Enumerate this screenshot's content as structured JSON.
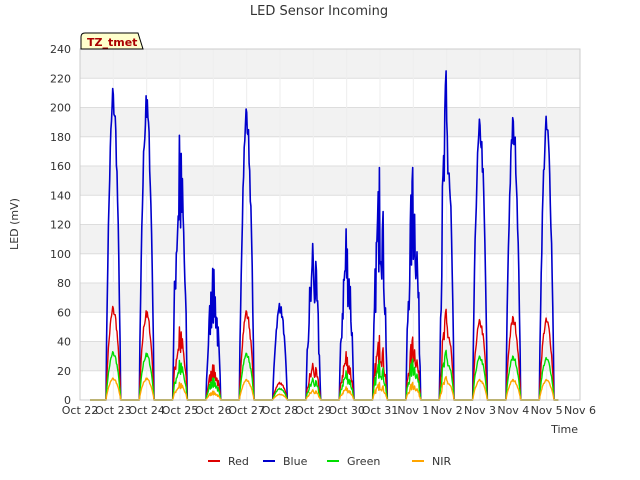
{
  "chart_data": {
    "type": "line",
    "title": "LED Sensor Incoming",
    "xlabel": "Time",
    "ylabel": "LED (mV)",
    "ylim": [
      0,
      240
    ],
    "yticks": [
      0,
      20,
      40,
      60,
      80,
      100,
      120,
      140,
      160,
      180,
      200,
      220,
      240
    ],
    "xlim": [
      0,
      15
    ],
    "xticks": [
      "Oct 22",
      "Oct 23",
      "Oct 24",
      "Oct 25",
      "Oct 26",
      "Oct 27",
      "Oct 28",
      "Oct 29",
      "Oct 30",
      "Oct 31",
      "Nov 1",
      "Nov 2",
      "Nov 3",
      "Nov 4",
      "Nov 5",
      "Nov 6"
    ],
    "badge": "TZ_tmet",
    "grid": true,
    "legend_position": "bottom",
    "daily_peaks": {
      "days": [
        "Oct 23",
        "Oct 24",
        "Oct 25",
        "Oct 26",
        "Oct 27",
        "Oct 28",
        "Oct 29",
        "Oct 30",
        "Oct 31",
        "Nov 1",
        "Nov 2",
        "Nov 3",
        "Nov 4",
        "Nov 5"
      ],
      "day_index": [
        1,
        2,
        3,
        4,
        5,
        6,
        7,
        8,
        9,
        10,
        11,
        12,
        13,
        14
      ],
      "series": [
        {
          "name": "Red",
          "color": "#dd0000",
          "values": [
            64,
            61,
            50,
            24,
            61,
            12,
            25,
            33,
            44,
            43,
            62,
            55,
            57,
            56
          ]
        },
        {
          "name": "Blue",
          "color": "#0000cc",
          "values": [
            213,
            208,
            181,
            90,
            199,
            66,
            107,
            117,
            159,
            159,
            225,
            192,
            193,
            194
          ]
        },
        {
          "name": "Green",
          "color": "#00dd00",
          "values": [
            33,
            32,
            27,
            15,
            32,
            8,
            15,
            20,
            27,
            28,
            34,
            30,
            30,
            29
          ]
        },
        {
          "name": "NIR",
          "color": "#ffa500",
          "values": [
            15,
            15,
            12,
            6,
            14,
            4,
            7,
            9,
            12,
            12,
            16,
            14,
            14,
            14
          ]
        }
      ]
    }
  }
}
